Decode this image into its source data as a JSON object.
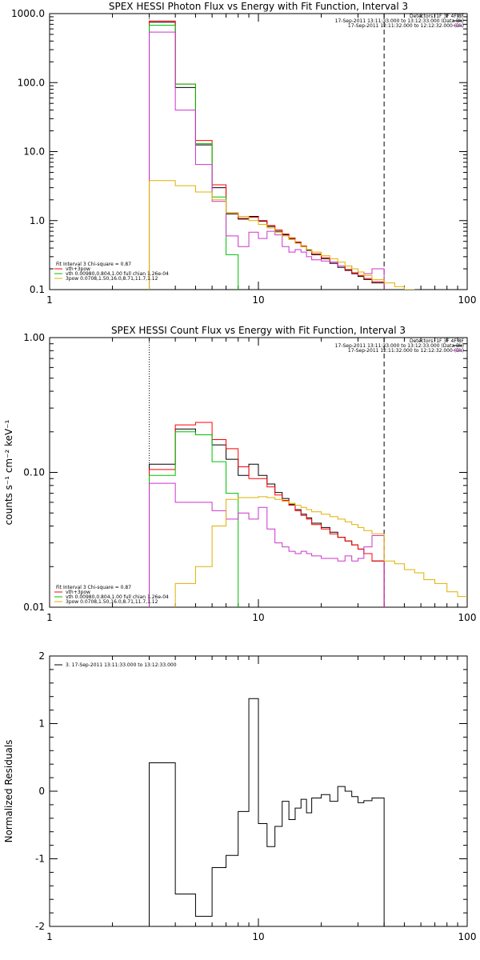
{
  "chart_data": [
    {
      "type": "line",
      "title": "SPEX HESSI Photon Flux vs Energy with Fit Function, Interval 3",
      "xlabel": "",
      "ylabel": "",
      "xscale": "log",
      "yscale": "log",
      "xlim": [
        1,
        100
      ],
      "ylim": [
        0.1,
        1000
      ],
      "x_ticks": [
        1,
        10,
        100
      ],
      "x_ticklabels": [
        "1",
        "10",
        "100"
      ],
      "y_ticks": [
        0.1,
        1,
        10,
        100,
        1000
      ],
      "y_ticklabels": [
        "0.1",
        "1.0",
        "10.0",
        "100.0",
        "1000.0"
      ],
      "header": [
        "Detectors: 1F 3F 4F 8F",
        "17-Sep-2011 13:11:33.000 to 13:12:33.000 (Data-Bk)",
        "17-Sep-2011 12:11:32.000 to 12:12:32.000 (Bk)"
      ],
      "legend": [
        "Fit Interval 3   Chi-square = 0.87",
        "vth+3pow",
        "vth 0.00980,0.804,1.00  full chian 1.26e-04",
        "3pow 0.0708,1.50,16.0,8.71,11.7,1.12"
      ],
      "vlines": [
        {
          "x": 3,
          "style": "dotted"
        },
        {
          "x": 40,
          "style": "dashed"
        }
      ],
      "edges": [
        3,
        4,
        5,
        6,
        7,
        8,
        9,
        10,
        11,
        12,
        13,
        14,
        15,
        16,
        17,
        18,
        20,
        22,
        24,
        26,
        28,
        30,
        32,
        35,
        40,
        45,
        50,
        56,
        62,
        70,
        80,
        90,
        100
      ],
      "series": [
        {
          "name": "",
          "color": "#000000",
          "values": [
            750,
            85,
            12.5,
            3.0,
            1.25,
            1.05,
            1.15,
            0.98,
            0.82,
            0.7,
            0.62,
            0.55,
            0.48,
            0.42,
            0.37,
            0.32,
            0.28,
            0.24,
            0.21,
            0.19,
            0.17,
            0.155,
            0.14,
            0.125,
            null,
            null,
            null,
            null,
            null,
            null,
            null,
            null
          ]
        },
        {
          "name": "",
          "color": "#ff0000",
          "values": [
            780,
            95,
            14.5,
            3.3,
            1.3,
            1.08,
            1.12,
            1.0,
            0.85,
            0.73,
            0.64,
            0.56,
            0.49,
            0.43,
            0.38,
            0.33,
            0.29,
            0.25,
            0.22,
            0.195,
            0.175,
            0.16,
            0.145,
            0.13,
            null,
            null,
            null,
            null,
            null,
            null,
            null,
            null
          ]
        },
        {
          "name": "",
          "color": "#00c000",
          "values": [
            680,
            95,
            13,
            2.2,
            0.32,
            null,
            null,
            null,
            null,
            null,
            null,
            null,
            null,
            null,
            null,
            null,
            null,
            null,
            null,
            null,
            null,
            null,
            null,
            null,
            null,
            null,
            null,
            null,
            null,
            null,
            null,
            null
          ]
        },
        {
          "name": "",
          "color": "#cc33cc",
          "values": [
            540,
            40,
            6.5,
            1.9,
            0.6,
            0.42,
            0.68,
            0.55,
            0.7,
            0.62,
            0.42,
            0.35,
            0.38,
            0.35,
            0.3,
            0.27,
            0.26,
            0.25,
            0.22,
            0.22,
            0.2,
            0.18,
            0.17,
            0.2,
            null,
            null,
            null,
            null,
            null,
            null,
            null,
            null
          ]
        },
        {
          "name": "",
          "color": "#e0b000",
          "values": [
            3.8,
            3.2,
            2.6,
            2.0,
            1.3,
            1.15,
            1.0,
            0.88,
            0.78,
            0.68,
            0.6,
            0.53,
            0.47,
            0.42,
            0.38,
            0.35,
            0.31,
            0.28,
            0.25,
            0.22,
            0.2,
            0.18,
            0.16,
            0.14,
            0.125,
            0.11,
            0.1,
            null,
            null,
            null,
            null,
            null
          ]
        }
      ]
    },
    {
      "type": "line",
      "title": "SPEX HESSI Count Flux vs Energy with Fit Function, Interval 3",
      "xlabel": "",
      "ylabel": "counts s⁻¹ cm⁻² keV⁻¹",
      "xscale": "log",
      "yscale": "log",
      "xlim": [
        1,
        100
      ],
      "ylim": [
        0.01,
        1
      ],
      "x_ticks": [
        1,
        10,
        100
      ],
      "x_ticklabels": [
        "1",
        "10",
        "100"
      ],
      "y_ticks": [
        0.01,
        0.1,
        1
      ],
      "y_ticklabels": [
        "0.01",
        "0.10",
        "1.00"
      ],
      "header": [
        "Detectors: 1F 3F 4F 8F",
        "17-Sep-2011 13:11:33.000 to 13:12:33.000 (Data-Bk)",
        "17-Sep-2011 12:11:32.000 to 12:12:32.000 (Bk)"
      ],
      "legend": [
        "Fit Interval 3   Chi-square = 0.87",
        "vth+3pow",
        "vth 0.00980,0.804,1.00  full chian 1.26e-04",
        "3pow 0.0708,1.50,16.0,8.71,11.7,1.12"
      ],
      "vlines": [
        {
          "x": 3,
          "style": "dotted"
        },
        {
          "x": 40,
          "style": "dashed"
        }
      ],
      "edges": [
        3,
        4,
        5,
        6,
        7,
        8,
        9,
        10,
        11,
        12,
        13,
        14,
        15,
        16,
        17,
        18,
        20,
        22,
        24,
        26,
        28,
        30,
        32,
        35,
        40,
        45,
        50,
        56,
        62,
        70,
        80,
        90,
        100
      ],
      "series": [
        {
          "name": "",
          "color": "#000000",
          "values": [
            0.115,
            0.21,
            0.19,
            0.16,
            0.125,
            0.095,
            0.115,
            0.095,
            0.082,
            0.071,
            0.064,
            0.058,
            0.053,
            0.049,
            0.046,
            0.042,
            0.039,
            0.036,
            0.033,
            0.031,
            0.029,
            0.027,
            0.025,
            0.022,
            null,
            null,
            null,
            null,
            null,
            null,
            null,
            null
          ]
        },
        {
          "name": "",
          "color": "#ff0000",
          "values": [
            0.105,
            0.225,
            0.235,
            0.175,
            0.15,
            0.11,
            0.09,
            0.09,
            0.078,
            0.068,
            0.062,
            0.057,
            0.052,
            0.048,
            0.045,
            0.041,
            0.038,
            0.035,
            0.033,
            0.031,
            0.029,
            0.027,
            0.025,
            0.022,
            null,
            null,
            null,
            null,
            null,
            null,
            null,
            null
          ]
        },
        {
          "name": "",
          "color": "#00c000",
          "values": [
            0.095,
            0.2,
            0.19,
            0.12,
            0.07,
            null,
            null,
            null,
            null,
            null,
            null,
            null,
            null,
            null,
            null,
            null,
            null,
            null,
            null,
            null,
            null,
            null,
            null,
            null,
            null,
            null,
            null,
            null,
            null,
            null,
            null,
            null
          ]
        },
        {
          "name": "",
          "color": "#cc33cc",
          "values": [
            0.083,
            0.06,
            0.06,
            0.052,
            0.045,
            0.05,
            0.045,
            0.055,
            0.038,
            0.03,
            0.028,
            0.026,
            0.025,
            0.026,
            0.025,
            0.024,
            0.023,
            0.023,
            0.022,
            0.024,
            0.022,
            0.023,
            0.028,
            0.034,
            null,
            null,
            null,
            null,
            null,
            null,
            null,
            null
          ]
        },
        {
          "name": "",
          "color": "#e0b000",
          "values": [
            null,
            0.015,
            0.02,
            0.04,
            0.063,
            0.065,
            0.065,
            0.066,
            0.065,
            0.063,
            0.061,
            0.059,
            0.057,
            0.055,
            0.053,
            0.051,
            0.049,
            0.047,
            0.045,
            0.043,
            0.041,
            0.039,
            0.037,
            0.035,
            0.022,
            0.021,
            0.019,
            0.018,
            0.016,
            0.015,
            0.013,
            0.012
          ]
        }
      ]
    },
    {
      "type": "line",
      "title": "",
      "xlabel": "",
      "ylabel": "Normalized Residuals",
      "xscale": "log",
      "yscale": "linear",
      "xlim": [
        1,
        100
      ],
      "ylim": [
        -2,
        2
      ],
      "x_ticks": [
        1,
        10,
        100
      ],
      "x_ticklabels": [
        "1",
        "10",
        "100"
      ],
      "y_ticks": [
        -2,
        -1,
        0,
        1,
        2
      ],
      "y_ticklabels": [
        "-2",
        "-1",
        "0",
        "1",
        "2"
      ],
      "legend": [
        "3. 17-Sep-2011 13:11:33.000 to 13:12:33.000"
      ],
      "edges": [
        3,
        4,
        5,
        6,
        7,
        8,
        9,
        10,
        11,
        12,
        13,
        14,
        15,
        16,
        17,
        18,
        20,
        22,
        24,
        26,
        28,
        30,
        32,
        35,
        40
      ],
      "series": [
        {
          "name": "",
          "color": "#000000",
          "values": [
            0.42,
            -1.52,
            -1.85,
            -1.13,
            -0.95,
            -0.3,
            1.37,
            -0.48,
            -0.82,
            -0.52,
            -0.15,
            -0.42,
            -0.25,
            -0.12,
            -0.32,
            -0.1,
            -0.05,
            -0.15,
            0.07,
            0.0,
            -0.08,
            -0.17,
            -0.14,
            -0.1
          ]
        }
      ]
    }
  ]
}
